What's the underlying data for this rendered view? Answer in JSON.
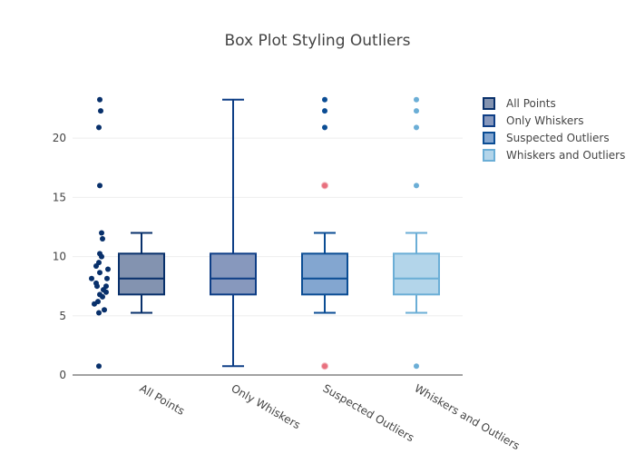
{
  "chart_data": {
    "type": "box",
    "title": "Box Plot Styling Outliers",
    "xlabel": "",
    "ylabel": "",
    "ylim": [
      0,
      24
    ],
    "y_ticks": [
      0,
      5,
      10,
      15,
      20
    ],
    "grid": true,
    "legend_position": "right",
    "categories": [
      "All Points",
      "Only Whiskers",
      "Suspected Outliers",
      "Whiskers and Outliers"
    ],
    "data_points": [
      0.75,
      5.25,
      5.5,
      6,
      6.2,
      6.6,
      6.8,
      7.0,
      7.2,
      7.5,
      7.5,
      7.75,
      8.15,
      8.15,
      8.65,
      8.93,
      9.2,
      9.5,
      10.0,
      10.25,
      11.5,
      12.0,
      16.0,
      20.9,
      22.3,
      23.25
    ],
    "series": [
      {
        "name": "All Points",
        "category": "All Points",
        "color": "#08306b",
        "fill": "#8393b0",
        "stats": {
          "lower_fence": 5.25,
          "q1": 6.8,
          "median": 8.15,
          "q3": 10.25,
          "upper_fence": 12.0
        },
        "boxpoints": "all",
        "outliers": []
      },
      {
        "name": "Only Whiskers",
        "category": "Only Whiskers",
        "color": "#0e3e86",
        "fill": "#8798bd",
        "stats": {
          "lower_fence": 0.75,
          "q1": 6.8,
          "median": 8.15,
          "q3": 10.25,
          "upper_fence": 23.25
        },
        "boxpoints": false,
        "outliers": []
      },
      {
        "name": "Suspected Outliers",
        "category": "Suspected Outliers",
        "color": "#0b4d94",
        "fill": "#83a6d0",
        "stats": {
          "lower_fence": 5.25,
          "q1": 6.8,
          "median": 8.15,
          "q3": 10.25,
          "upper_fence": 12.0
        },
        "boxpoints": "suspectedoutliers",
        "outliers": [
          {
            "y": 23.25,
            "suspected": false
          },
          {
            "y": 22.3,
            "suspected": false
          },
          {
            "y": 20.9,
            "suspected": false
          },
          {
            "y": 16.0,
            "suspected": true
          },
          {
            "y": 0.75,
            "suspected": true
          }
        ],
        "suspected_color": "#e8707e"
      },
      {
        "name": "Whiskers and Outliers",
        "category": "Whiskers and Outliers",
        "color": "#6baed6",
        "fill": "#b3d5ea",
        "stats": {
          "lower_fence": 5.25,
          "q1": 6.8,
          "median": 8.15,
          "q3": 10.25,
          "upper_fence": 12.0
        },
        "boxpoints": "outliers",
        "outliers": [
          {
            "y": 23.25,
            "suspected": false
          },
          {
            "y": 22.3,
            "suspected": false
          },
          {
            "y": 20.9,
            "suspected": false
          },
          {
            "y": 16.0,
            "suspected": false
          },
          {
            "y": 0.75,
            "suspected": false
          }
        ]
      }
    ]
  }
}
